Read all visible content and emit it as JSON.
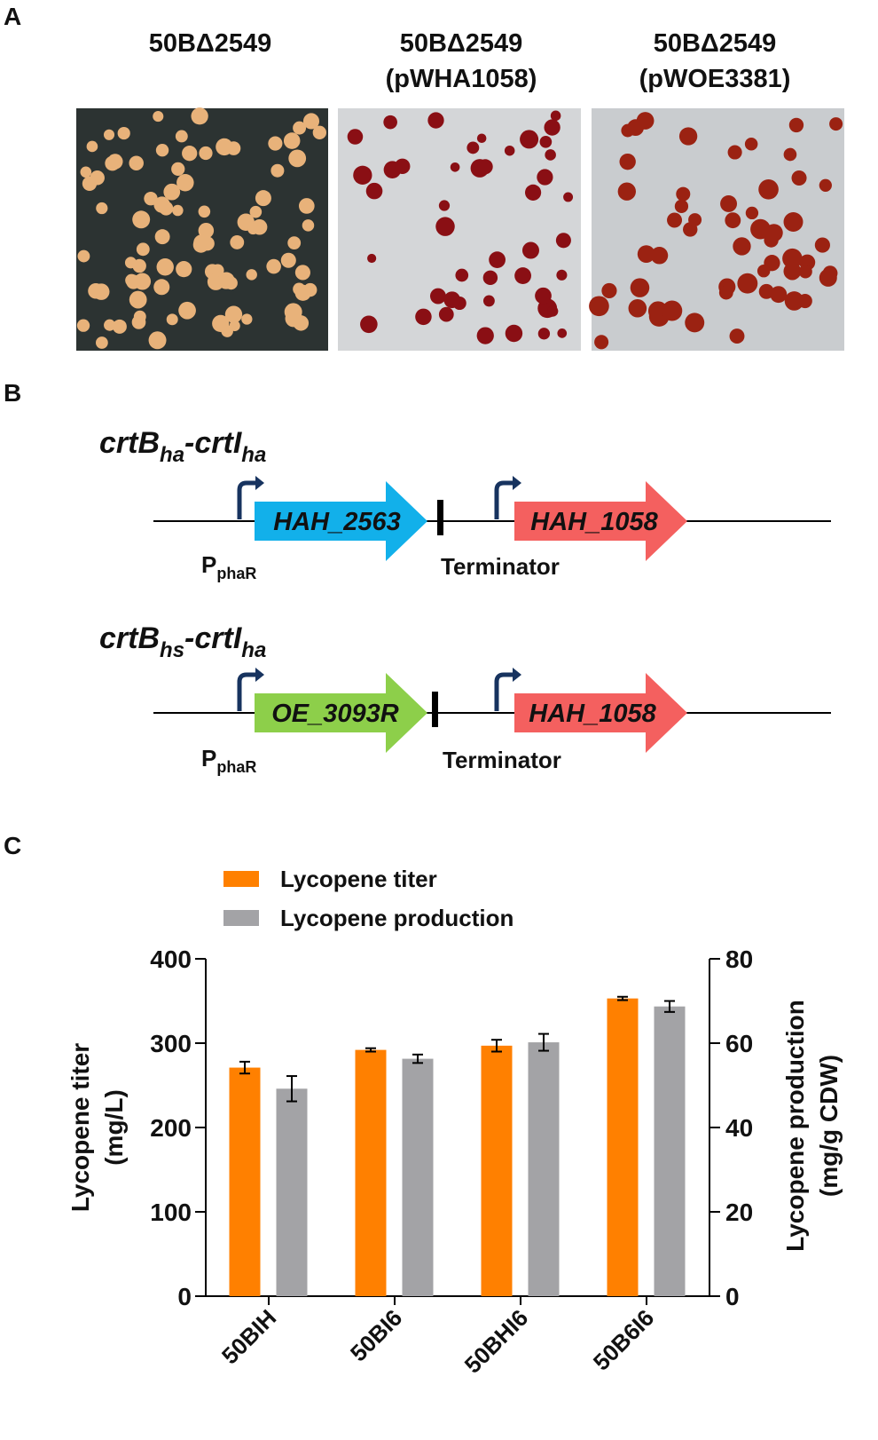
{
  "panel_a": {
    "label": "A",
    "plates": [
      {
        "title": "50BΔ2549"
      },
      {
        "title": "50BΔ2549",
        "subtitle": "(pWHA1058)"
      },
      {
        "title": "50BΔ2549",
        "subtitle": "(pWOE3381)"
      }
    ]
  },
  "panel_b": {
    "label": "B",
    "constructs": [
      {
        "name": "crtB",
        "name_sub": "ha",
        "name2": "-crtI",
        "name2_sub": "ha",
        "gene1": "HAH_2563",
        "gene2": "HAH_1058",
        "promoter": "P",
        "promoter_sub": "phaR",
        "terminator": "Terminator"
      },
      {
        "name": "crtB",
        "name_sub": "hs",
        "name2": "-crtI",
        "name2_sub": "ha",
        "gene1": "OE_3093R",
        "gene2": "HAH_1058",
        "promoter": "P",
        "promoter_sub": "phaR",
        "terminator": "Terminator"
      }
    ]
  },
  "chart_data": {
    "type": "bar",
    "panel_label": "C",
    "categories": [
      "50BIH",
      "50BI6",
      "50BHI6",
      "50B6I6"
    ],
    "series": [
      {
        "name": "Lycopene titer",
        "color": "#ff8000",
        "values": [
          271,
          292,
          297,
          353
        ],
        "errors": [
          7,
          2,
          7,
          2
        ]
      },
      {
        "name": "Lycopene production",
        "color": "#a3a3a6",
        "axis": "y2",
        "values": [
          49.2,
          56.3,
          60.2,
          68.7
        ],
        "errors": [
          3,
          1,
          2,
          1.3
        ]
      }
    ],
    "ylabel": [
      "Lycopene titer",
      "(mg/L)"
    ],
    "y2label": [
      "Lycopene production",
      "(mg/g CDW)"
    ],
    "ylim": [
      0,
      400
    ],
    "yticks": [
      0,
      100,
      200,
      300,
      400
    ],
    "y2lim": [
      0,
      80
    ],
    "y2ticks": [
      0,
      20,
      40,
      60,
      80
    ]
  }
}
